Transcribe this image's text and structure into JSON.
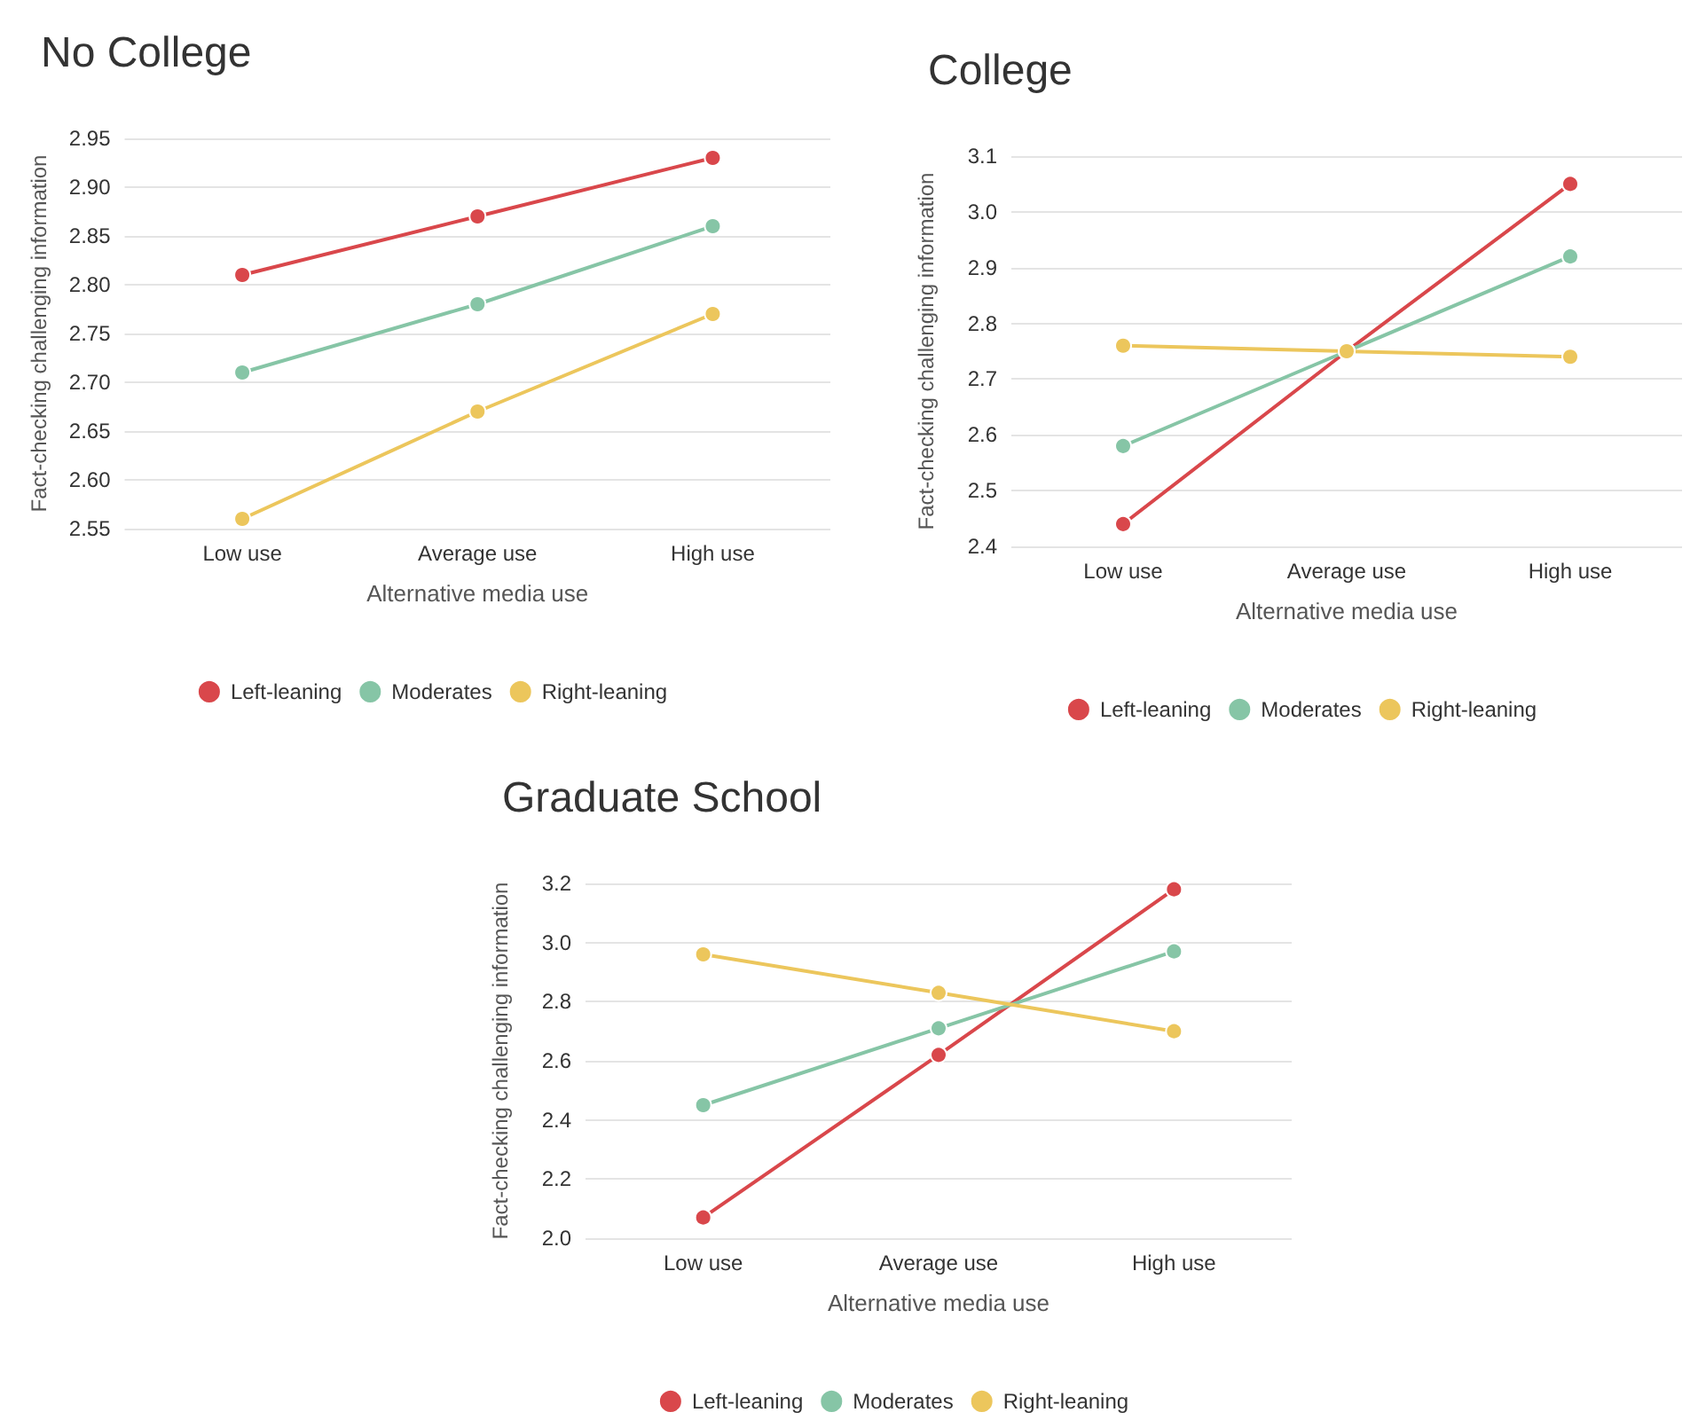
{
  "chart_data": [
    {
      "type": "line",
      "title": "No College",
      "xlabel": "Alternative media use",
      "ylabel": "Fact-checking challenging information",
      "categories": [
        "Low use",
        "Average use",
        "High use"
      ],
      "ylim": [
        2.55,
        2.95
      ],
      "yticks": [
        2.55,
        {
          "value": 2.6,
          "label": "2.60"
        },
        2.65,
        {
          "value": 2.7,
          "label": "2.70"
        },
        2.75,
        {
          "value": 2.8,
          "label": "2.80"
        },
        2.85,
        {
          "value": 2.9,
          "label": "2.90"
        },
        2.95
      ],
      "grid": "y",
      "legend": "bottom",
      "marker": "circle",
      "line_style": "solid",
      "series": [
        {
          "name": "Left-leaning",
          "color": "#d9474b",
          "values": [
            2.81,
            2.87,
            2.93
          ]
        },
        {
          "name": "Moderates",
          "color": "#86c5a6",
          "values": [
            2.71,
            2.78,
            2.86
          ]
        },
        {
          "name": "Right-leaning",
          "color": "#ecc65c",
          "values": [
            2.56,
            2.67,
            2.77
          ]
        }
      ]
    },
    {
      "type": "line",
      "title": "College",
      "xlabel": "Alternative media use",
      "ylabel": "Fact-checking challenging information",
      "categories": [
        "Low use",
        "Average use",
        "High use"
      ],
      "ylim": [
        2.4,
        3.1
      ],
      "yticks": [
        2.4,
        2.5,
        2.6,
        2.7,
        2.8,
        2.9,
        {
          "value": 3,
          "label": "3.0"
        },
        3.1
      ],
      "grid": "y",
      "legend": "bottom",
      "marker": "circle",
      "line_style": "solid",
      "series": [
        {
          "name": "Left-leaning",
          "color": "#d9474b",
          "values": [
            2.44,
            2.75,
            3.05
          ]
        },
        {
          "name": "Moderates",
          "color": "#86c5a6",
          "values": [
            2.58,
            2.75,
            2.92
          ]
        },
        {
          "name": "Right-leaning",
          "color": "#ecc65c",
          "values": [
            2.76,
            2.75,
            2.74
          ]
        }
      ]
    },
    {
      "type": "line",
      "title": "Graduate School",
      "xlabel": "Alternative media use",
      "ylabel": "Fact-checking challenging information",
      "categories": [
        "Low use",
        "Average use",
        "High use"
      ],
      "ylim": [
        2.0,
        3.2
      ],
      "yticks": [
        {
          "value": 2,
          "label": "2.0"
        },
        2.2,
        2.4,
        2.6,
        2.8,
        {
          "value": 3,
          "label": "3.0"
        },
        3.2
      ],
      "grid": "y",
      "legend": "bottom",
      "marker": "circle",
      "line_style": "solid",
      "series": [
        {
          "name": "Left-leaning",
          "color": "#d9474b",
          "values": [
            2.07,
            2.62,
            3.18
          ]
        },
        {
          "name": "Moderates",
          "color": "#86c5a6",
          "values": [
            2.45,
            2.71,
            2.97
          ]
        },
        {
          "name": "Right-leaning",
          "color": "#ecc65c",
          "values": [
            2.96,
            2.83,
            2.7
          ]
        }
      ]
    }
  ]
}
